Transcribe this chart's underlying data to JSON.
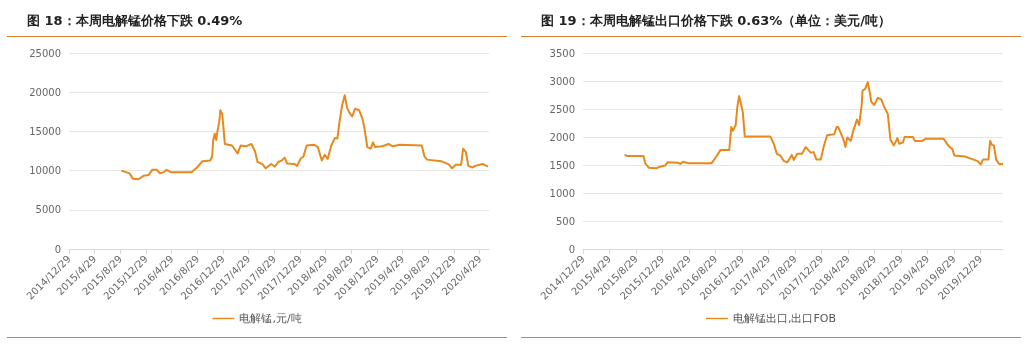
{
  "chart_data": [
    {
      "type": "line",
      "title": "图 18：本周电解锰价格下跌 0.49%",
      "legend": "bottom",
      "grid": "y",
      "marker": "none",
      "line_style": "solid",
      "ylim": [
        0,
        25000
      ],
      "yticks": [
        0,
        5000,
        10000,
        15000,
        20000,
        25000
      ],
      "xlim": [
        "2014-12-29",
        "2020-06-12"
      ],
      "xticks": [
        {
          "value": "2014-12-29",
          "label": "2014/12/29"
        },
        {
          "value": "2015-04-29",
          "label": "2015/4/29"
        },
        {
          "value": "2015-08-29",
          "label": "2015/8/29"
        },
        {
          "value": "2015-12-29",
          "label": "2015/12/29"
        },
        {
          "value": "2016-04-29",
          "label": "2016/4/29"
        },
        {
          "value": "2016-08-29",
          "label": "2016/8/29"
        },
        {
          "value": "2016-12-29",
          "label": "2016/12/29"
        },
        {
          "value": "2017-04-29",
          "label": "2017/4/29"
        },
        {
          "value": "2017-08-29",
          "label": "2017/8/29"
        },
        {
          "value": "2017-12-29",
          "label": "2017/12/29"
        },
        {
          "value": "2018-04-29",
          "label": "2018/4/29"
        },
        {
          "value": "2018-08-29",
          "label": "2018/8/29"
        },
        {
          "value": "2018-12-29",
          "label": "2018/12/29"
        },
        {
          "value": "2019-04-29",
          "label": "2019/4/29"
        },
        {
          "value": "2019-08-29",
          "label": "2019/8/29"
        },
        {
          "value": "2019-12-29",
          "label": "2019/12/29"
        },
        {
          "value": "2020-04-29",
          "label": "2020/4/29"
        }
      ],
      "series": [
        {
          "name": "电解锰,元/吨",
          "color": "#e8891e",
          "x": [
            "2015-09-03",
            "2015-09-25",
            "2015-10-12",
            "2015-10-29",
            "2015-11-24",
            "2015-12-19",
            "2016-01-10",
            "2016-01-28",
            "2016-02-18",
            "2016-03-05",
            "2016-03-22",
            "2016-04-05",
            "2016-04-25",
            "2016-08-01",
            "2016-08-31",
            "2016-09-22",
            "2016-10-29",
            "2016-11-07",
            "2016-11-12",
            "2016-11-19",
            "2016-11-26",
            "2016-12-02",
            "2016-12-11",
            "2016-12-16",
            "2016-12-25",
            "2017-01-06",
            "2017-02-09",
            "2017-03-08",
            "2017-03-22",
            "2017-04-16",
            "2017-05-12",
            "2017-05-29",
            "2017-06-10",
            "2017-07-02",
            "2017-07-19",
            "2017-08-14",
            "2017-08-31",
            "2017-09-17",
            "2017-10-04",
            "2017-10-17",
            "2017-10-29",
            "2017-12-03",
            "2017-12-15",
            "2018-01-01",
            "2018-01-14",
            "2018-01-29",
            "2018-03-06",
            "2018-03-23",
            "2018-04-11",
            "2018-04-25",
            "2018-05-09",
            "2018-05-26",
            "2018-06-12",
            "2018-06-24",
            "2018-07-05",
            "2018-07-17",
            "2018-07-29",
            "2018-08-09",
            "2018-08-20",
            "2018-09-02",
            "2018-09-16",
            "2018-10-05",
            "2018-10-21",
            "2018-10-29",
            "2018-11-13",
            "2018-11-29",
            "2018-12-10",
            "2018-12-20",
            "2019-01-23",
            "2019-02-22",
            "2019-03-13",
            "2019-04-16",
            "2019-07-29",
            "2019-08-11",
            "2019-08-23",
            "2019-10-29",
            "2019-12-04",
            "2019-12-20",
            "2020-01-06",
            "2020-02-01",
            "2020-02-10",
            "2020-02-23",
            "2020-03-06",
            "2020-03-26",
            "2020-04-08",
            "2020-05-12",
            "2020-06-07"
          ],
          "values": [
            10000,
            9800,
            9650,
            8950,
            8900,
            9350,
            9430,
            10100,
            10100,
            9650,
            9800,
            10100,
            9800,
            9800,
            10500,
            11200,
            11300,
            11800,
            13900,
            14700,
            13900,
            15000,
            16300,
            17700,
            17200,
            13400,
            13200,
            12200,
            13200,
            13100,
            13400,
            12500,
            11100,
            10850,
            10300,
            10850,
            10500,
            11100,
            11300,
            11650,
            10900,
            10850,
            10600,
            11550,
            11800,
            13200,
            13300,
            13000,
            11300,
            12000,
            11500,
            13200,
            14150,
            14100,
            16400,
            18400,
            19600,
            18000,
            17400,
            16900,
            17900,
            17700,
            16600,
            15600,
            13000,
            12800,
            13600,
            13000,
            13100,
            13400,
            13100,
            13300,
            13200,
            11800,
            11400,
            11200,
            10800,
            10300,
            10750,
            10750,
            12800,
            12400,
            10600,
            10400,
            10600,
            10850,
            10500
          ]
        }
      ]
    },
    {
      "type": "line",
      "title": "图 19：本周电解锰出口价格下跌 0.63%（单位：美元/吨）",
      "legend": "bottom",
      "grid": "y",
      "marker": "none",
      "line_style": "solid",
      "ylim": [
        0,
        3500
      ],
      "yticks": [
        0,
        500,
        1000,
        1500,
        2000,
        2500,
        3000,
        3500
      ],
      "xlim": [
        "2014-12-29",
        "2020-04-10"
      ],
      "xticks": [
        {
          "value": "2014-12-29",
          "label": "2014/12/29"
        },
        {
          "value": "2015-04-29",
          "label": "2015/4/29"
        },
        {
          "value": "2015-08-29",
          "label": "2015/8/29"
        },
        {
          "value": "2015-12-29",
          "label": "2015/12/29"
        },
        {
          "value": "2016-04-29",
          "label": "2016/4/29"
        },
        {
          "value": "2016-08-29",
          "label": "2016/8/29"
        },
        {
          "value": "2016-12-29",
          "label": "2016/12/29"
        },
        {
          "value": "2017-04-29",
          "label": "2017/4/29"
        },
        {
          "value": "2017-08-29",
          "label": "2017/8/29"
        },
        {
          "value": "2017-12-29",
          "label": "2017/12/29"
        },
        {
          "value": "2018-04-29",
          "label": "2018/4/29"
        },
        {
          "value": "2018-08-29",
          "label": "2018/8/29"
        },
        {
          "value": "2018-12-29",
          "label": "2018/12/29"
        },
        {
          "value": "2019-04-29",
          "label": "2019/4/29"
        },
        {
          "value": "2019-08-29",
          "label": "2019/8/29"
        },
        {
          "value": "2019-12-29",
          "label": "2019/12/29"
        }
      ],
      "series": [
        {
          "name": "电解锰出口,出口FOB",
          "color": "#e8891e",
          "x": [
            "2015-07-08",
            "2015-07-21",
            "2015-10-03",
            "2015-10-11",
            "2015-10-28",
            "2015-11-30",
            "2015-12-17",
            "2016-01-10",
            "2016-01-22",
            "2016-03-08",
            "2016-03-20",
            "2016-04-01",
            "2016-04-26",
            "2016-08-10",
            "2016-08-27",
            "2016-09-21",
            "2016-10-15",
            "2016-10-31",
            "2016-11-09",
            "2016-11-16",
            "2016-11-29",
            "2016-12-07",
            "2016-12-15",
            "2016-12-25",
            "2017-01-01",
            "2017-01-10",
            "2017-03-19",
            "2017-05-07",
            "2017-05-23",
            "2017-06-06",
            "2017-06-22",
            "2017-07-09",
            "2017-07-25",
            "2017-08-14",
            "2017-08-23",
            "2017-09-08",
            "2017-09-30",
            "2017-10-17",
            "2017-11-09",
            "2017-11-22",
            "2017-12-05",
            "2017-12-25",
            "2018-01-07",
            "2018-01-23",
            "2018-02-25",
            "2018-03-08",
            "2018-03-15",
            "2018-04-09",
            "2018-04-17",
            "2018-04-26",
            "2018-05-12",
            "2018-05-23",
            "2018-06-09",
            "2018-06-19",
            "2018-07-01",
            "2018-07-05",
            "2018-07-17",
            "2018-07-29",
            "2018-08-07",
            "2018-08-14",
            "2018-08-27",
            "2018-09-13",
            "2018-09-29",
            "2018-10-12",
            "2018-10-29",
            "2018-11-10",
            "2018-11-26",
            "2018-12-12",
            "2018-12-20",
            "2019-01-06",
            "2019-01-14",
            "2019-02-21",
            "2019-03-03",
            "2019-04-05",
            "2019-04-22",
            "2019-07-12",
            "2019-08-02",
            "2019-08-22",
            "2019-08-30",
            "2019-10-19",
            "2019-12-16",
            "2019-12-29",
            "2020-01-10",
            "2020-02-03",
            "2020-02-11",
            "2020-02-19",
            "2020-02-28",
            "2020-03-10",
            "2020-03-23",
            "2020-04-10"
          ],
          "values": [
            1680,
            1660,
            1660,
            1530,
            1450,
            1440,
            1470,
            1490,
            1550,
            1540,
            1520,
            1560,
            1530,
            1530,
            1620,
            1770,
            1770,
            1770,
            2180,
            2110,
            2210,
            2540,
            2730,
            2570,
            2440,
            2010,
            2010,
            2010,
            1880,
            1700,
            1670,
            1570,
            1550,
            1680,
            1590,
            1700,
            1700,
            1820,
            1720,
            1730,
            1600,
            1600,
            1820,
            2030,
            2050,
            2180,
            2180,
            1950,
            1820,
            1990,
            1930,
            2110,
            2310,
            2210,
            2570,
            2830,
            2860,
            2980,
            2800,
            2630,
            2570,
            2700,
            2670,
            2540,
            2410,
            1950,
            1850,
            1980,
            1880,
            1900,
            2000,
            2000,
            1930,
            1930,
            1970,
            1970,
            1850,
            1780,
            1670,
            1650,
            1570,
            1510,
            1600,
            1600,
            1930,
            1860,
            1850,
            1590,
            1520,
            1520
          ]
        }
      ]
    }
  ]
}
